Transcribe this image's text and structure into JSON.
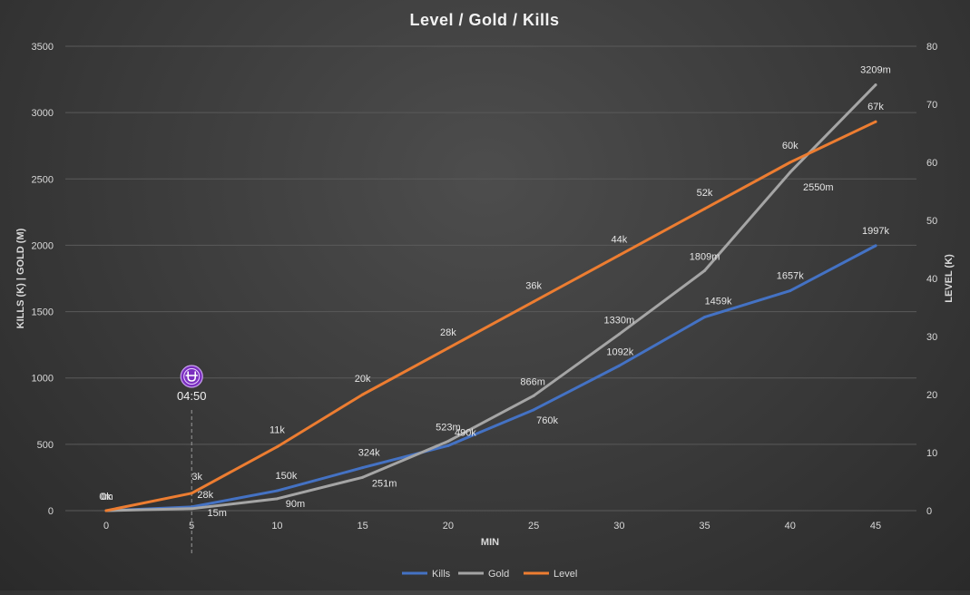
{
  "chart_data": {
    "type": "line",
    "title": "Level / Gold / Kills",
    "xlabel": "MIN",
    "ylabel_left": "KILLS (K) | GOLD (M)",
    "ylabel_right": "LEVEL (K)",
    "x": [
      0,
      5,
      10,
      15,
      20,
      25,
      30,
      35,
      40,
      45
    ],
    "ylim_left": [
      0,
      3500
    ],
    "yticks_left": [
      0,
      500,
      1000,
      1500,
      2000,
      2500,
      3000,
      3500
    ],
    "ylim_right": [
      0,
      80
    ],
    "yticks_right": [
      0,
      10,
      20,
      30,
      40,
      50,
      60,
      70,
      80
    ],
    "grid": true,
    "legend_position": "bottom",
    "series": [
      {
        "name": "Kills",
        "axis": "left",
        "color": "#4472c4",
        "values": [
          0,
          28,
          150,
          324,
          490,
          760,
          1092,
          1459,
          1657,
          1997
        ],
        "labels": [
          "0k",
          "28k",
          "150k",
          "324k",
          "490k",
          "760k",
          "1092k",
          "1459k",
          "1657k",
          "1997k"
        ]
      },
      {
        "name": "Gold",
        "axis": "left",
        "color": "#a5a5a5",
        "values": [
          0,
          15,
          90,
          251,
          523,
          866,
          1330,
          1809,
          2550,
          3209
        ],
        "labels": [
          "0m",
          "15m",
          "90m",
          "251m",
          "523m",
          "866m",
          "1330m",
          "1809m",
          "2550m",
          "3209m"
        ]
      },
      {
        "name": "Level",
        "axis": "right",
        "color": "#ed7d31",
        "values": [
          0,
          3,
          11,
          20,
          28,
          36,
          44,
          52,
          60,
          67
        ],
        "labels": [
          "0k",
          "3k",
          "11k",
          "20k",
          "28k",
          "36k",
          "44k",
          "52k",
          "60k",
          "67k"
        ]
      }
    ],
    "annotations": [
      {
        "x": 5,
        "text": "04:50",
        "icon": "purple-circle-icon",
        "icon_color": "#7b2fbf",
        "line_style": "dashed"
      }
    ]
  }
}
